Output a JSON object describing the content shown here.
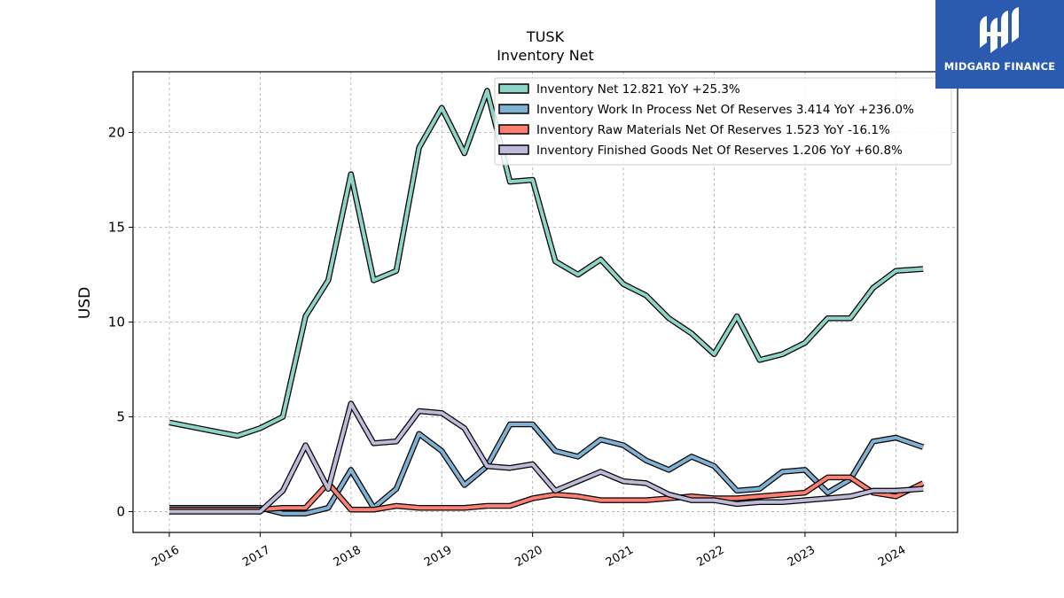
{
  "brand": {
    "name": "MIDGARD FINANCE",
    "bg": "#2a5bb0"
  },
  "chart_data": {
    "type": "line",
    "title": "TUSK",
    "subtitle": "Inventory Net",
    "ylabel": "USD",
    "xlabel": "",
    "ylim": [
      -1.1,
      23.2
    ],
    "xlim": [
      2015.6,
      2024.68
    ],
    "yticks": [
      0,
      5,
      10,
      15,
      20
    ],
    "xticks": [
      "2016",
      "2017",
      "2018",
      "2019",
      "2020",
      "2021",
      "2022",
      "2023",
      "2024"
    ],
    "grid": true,
    "legend_position": "top-right",
    "series": [
      {
        "name": "Inventory Net",
        "legend": "Inventory Net  12.821 YoY +25.3%",
        "color": "#8dd3c7",
        "x": [
          2016.0,
          2016.75,
          2017.0,
          2017.25,
          2017.5,
          2017.75,
          2018.0,
          2018.25,
          2018.5,
          2018.75,
          2019.0,
          2019.25,
          2019.5,
          2019.75,
          2020.0,
          2020.25,
          2020.5,
          2020.75,
          2021.0,
          2021.25,
          2021.5,
          2021.75,
          2022.0,
          2022.25,
          2022.5,
          2022.75,
          2023.0,
          2023.25,
          2023.5,
          2023.75,
          2024.0,
          2024.3
        ],
        "y": [
          4.7,
          4.0,
          4.4,
          5.0,
          10.3,
          12.2,
          17.8,
          12.2,
          12.7,
          19.2,
          21.3,
          18.9,
          22.2,
          17.4,
          17.5,
          13.2,
          12.5,
          13.3,
          12.0,
          11.4,
          10.2,
          9.4,
          8.3,
          10.3,
          8.0,
          8.3,
          8.9,
          10.2,
          10.2,
          11.8,
          12.7,
          12.8
        ]
      },
      {
        "name": "Inventory Work In Process Net Of Reserves",
        "legend": "Inventory Work In Process Net Of Reserves  3.414 YoY +236.0%",
        "color": "#80b1d3",
        "x": [
          2016.0,
          2016.75,
          2017.0,
          2017.25,
          2017.5,
          2017.75,
          2018.0,
          2018.25,
          2018.5,
          2018.75,
          2019.0,
          2019.25,
          2019.5,
          2019.75,
          2020.0,
          2020.25,
          2020.5,
          2020.75,
          2021.0,
          2021.25,
          2021.5,
          2021.75,
          2022.0,
          2022.25,
          2022.5,
          2022.75,
          2023.0,
          2023.25,
          2023.5,
          2023.75,
          2024.0,
          2024.3
        ],
        "y": [
          0.2,
          0.2,
          0.2,
          -0.1,
          -0.1,
          0.2,
          2.2,
          0.2,
          1.2,
          4.1,
          3.2,
          1.4,
          2.4,
          4.6,
          4.6,
          3.2,
          2.9,
          3.8,
          3.5,
          2.7,
          2.2,
          2.9,
          2.4,
          1.1,
          1.2,
          2.1,
          2.2,
          1.0,
          1.7,
          3.7,
          3.9,
          3.4
        ]
      },
      {
        "name": "Inventory Raw Materials Net Of Reserves",
        "legend": "Inventory Raw Materials Net Of Reserves  1.523 YoY -16.1%",
        "color": "#fb8072",
        "x": [
          2016.0,
          2016.75,
          2017.0,
          2017.25,
          2017.5,
          2017.75,
          2018.0,
          2018.25,
          2018.5,
          2018.75,
          2019.0,
          2019.25,
          2019.5,
          2019.75,
          2020.0,
          2020.25,
          2020.5,
          2020.75,
          2021.0,
          2021.25,
          2021.5,
          2021.75,
          2022.0,
          2022.25,
          2022.5,
          2022.75,
          2023.0,
          2023.25,
          2023.5,
          2023.75,
          2024.0,
          2024.3
        ],
        "y": [
          0.1,
          0.1,
          0.1,
          0.2,
          0.2,
          1.5,
          0.1,
          0.1,
          0.3,
          0.2,
          0.2,
          0.2,
          0.3,
          0.3,
          0.7,
          0.9,
          0.8,
          0.6,
          0.6,
          0.6,
          0.7,
          0.8,
          0.7,
          0.7,
          0.8,
          0.9,
          1.0,
          1.8,
          1.8,
          1.0,
          0.8,
          1.5
        ]
      },
      {
        "name": "Inventory Finished Goods Net Of Reserves",
        "legend": "Inventory Finished Goods Net Of Reserves  1.206 YoY +60.8%",
        "color": "#bebada",
        "x": [
          2016.0,
          2016.75,
          2017.0,
          2017.25,
          2017.5,
          2017.75,
          2018.0,
          2018.25,
          2018.5,
          2018.75,
          2019.0,
          2019.25,
          2019.5,
          2019.75,
          2020.0,
          2020.25,
          2020.5,
          2020.75,
          2021.0,
          2021.25,
          2021.5,
          2021.75,
          2022.0,
          2022.25,
          2022.5,
          2022.75,
          2023.0,
          2023.25,
          2023.5,
          2023.75,
          2024.0,
          2024.3
        ],
        "y": [
          0.0,
          0.0,
          0.0,
          1.1,
          3.5,
          1.2,
          5.7,
          3.6,
          3.7,
          5.3,
          5.2,
          4.4,
          2.4,
          2.3,
          2.5,
          1.1,
          1.6,
          2.1,
          1.6,
          1.5,
          0.9,
          0.6,
          0.6,
          0.4,
          0.5,
          0.5,
          0.6,
          0.7,
          0.8,
          1.1,
          1.1,
          1.2
        ]
      }
    ]
  }
}
